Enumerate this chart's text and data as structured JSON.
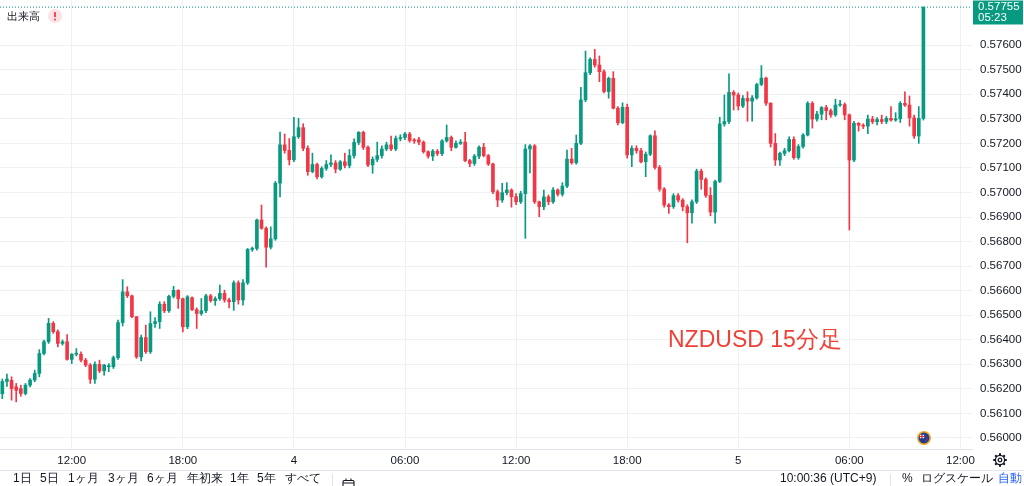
{
  "chart_data": {
    "type": "candlestick",
    "annotations": [
      "出来高",
      "05:23",
      "NZDUSD 15分足",
      "1日",
      "5日",
      "1ヶ月",
      "3ヶ月",
      "6ヶ月",
      "年初来",
      "1年",
      "5年",
      "すべて",
      "10:00:36 (UTC+9)",
      "%",
      "ログスケール",
      "自動"
    ],
    "categories": [
      null,
      null,
      null,
      null,
      null,
      null,
      null,
      null,
      null,
      null,
      null,
      null,
      null,
      null,
      null,
      "12:00",
      null,
      null,
      null,
      null,
      null,
      null,
      null,
      null,
      null,
      null,
      null,
      null,
      null,
      null,
      null,
      null,
      null,
      null,
      null,
      null,
      null,
      null,
      null,
      "18:00",
      null,
      null,
      null,
      null,
      null,
      null,
      null,
      null,
      null,
      null,
      null,
      null,
      null,
      null,
      null,
      null,
      null,
      null,
      null,
      null,
      null,
      null,
      null,
      "4",
      null,
      null,
      null,
      null,
      null,
      null,
      null,
      null,
      null,
      null,
      null,
      null,
      null,
      null,
      null,
      null,
      null,
      null,
      null,
      null,
      null,
      null,
      null,
      "06:00",
      null,
      null,
      null,
      null,
      null,
      null,
      null,
      null,
      null,
      null,
      null,
      null,
      null,
      null,
      null,
      null,
      null,
      null,
      null,
      null,
      null,
      null,
      null,
      "12:00",
      null,
      null,
      null,
      null,
      null,
      null,
      null,
      null,
      null,
      null,
      null,
      null,
      null,
      null,
      null,
      null,
      null,
      null,
      null,
      null,
      null,
      null,
      null,
      "18:00",
      null,
      null,
      null,
      null,
      null,
      null,
      null,
      null,
      null,
      null,
      null,
      null,
      null,
      null,
      null,
      null,
      null,
      null,
      null,
      null,
      null,
      null,
      null,
      "5",
      null,
      null,
      null,
      null,
      null,
      null,
      null,
      null,
      null,
      null,
      null,
      null,
      null,
      null,
      null,
      null,
      null,
      null,
      null,
      null,
      null,
      null,
      null,
      "06:00",
      null,
      null,
      null,
      null,
      null,
      null,
      null,
      null,
      null,
      null,
      null,
      null,
      null,
      null,
      null,
      null,
      null,
      null,
      null,
      null,
      null,
      null,
      null,
      "12:00",
      null,
      null
    ],
    "ohlc": [
      [
        0.5618,
        0.5624,
        0.5616,
        0.5623
      ],
      [
        0.5623,
        0.5626,
        0.5621,
        0.5624
      ],
      [
        0.56235,
        0.56249,
        0.56154,
        0.56201
      ],
      [
        0.56208,
        0.56222,
        0.56147,
        0.56194
      ],
      [
        0.56201,
        0.56215,
        0.5617,
        0.56181
      ],
      [
        0.56181,
        0.56222,
        0.56175,
        0.56215
      ],
      [
        0.56215,
        0.56242,
        0.56208,
        0.56236
      ],
      [
        0.56236,
        0.56276,
        0.56229,
        0.56263
      ],
      [
        0.56263,
        0.5636,
        0.56249,
        0.56344
      ],
      [
        0.56344,
        0.56399,
        0.56338,
        0.56392
      ],
      [
        0.56392,
        0.56487,
        0.56385,
        0.56467
      ],
      [
        0.56467,
        0.56474,
        0.56426,
        0.56433
      ],
      [
        0.56433,
        0.5644,
        0.56371,
        0.56385
      ],
      [
        0.56385,
        0.56399,
        0.56378,
        0.56392
      ],
      [
        0.56392,
        0.56421,
        0.56317,
        0.5632
      ],
      [
        0.5632,
        0.56344,
        0.56303,
        0.56341
      ],
      [
        0.56341,
        0.56364,
        0.56334,
        0.56341
      ],
      [
        0.56341,
        0.56351,
        0.5631,
        0.56317
      ],
      [
        0.56317,
        0.56324,
        0.5629,
        0.56297
      ],
      [
        0.56297,
        0.56303,
        0.56222,
        0.56239
      ],
      [
        0.56239,
        0.5631,
        0.56222,
        0.563
      ],
      [
        0.563,
        0.56317,
        0.56266,
        0.56273
      ],
      [
        0.56273,
        0.563,
        0.56256,
        0.56297
      ],
      [
        0.5629,
        0.56303,
        0.5627,
        0.5629
      ],
      [
        0.5629,
        0.56334,
        0.56283,
        0.56327
      ],
      [
        0.56327,
        0.5648,
        0.5632,
        0.5647
      ],
      [
        0.5647,
        0.56645,
        0.56456,
        0.56595
      ],
      [
        0.56595,
        0.56616,
        0.56572,
        0.56579
      ],
      [
        0.56579,
        0.56582,
        0.5649,
        0.56494
      ],
      [
        0.56494,
        0.56494,
        0.56324,
        0.5633
      ],
      [
        0.5633,
        0.56419,
        0.56314,
        0.56409
      ],
      [
        0.56409,
        0.5646,
        0.56344,
        0.56351
      ],
      [
        0.56351,
        0.56514,
        0.56344,
        0.56466
      ],
      [
        0.56466,
        0.5649,
        0.5645,
        0.56474
      ],
      [
        0.56474,
        0.56555,
        0.56446,
        0.56545
      ],
      [
        0.56545,
        0.56555,
        0.5651,
        0.56518
      ],
      [
        0.56518,
        0.56582,
        0.56511,
        0.56577
      ],
      [
        0.56577,
        0.56618,
        0.5657,
        0.56601
      ],
      [
        0.56601,
        0.56604,
        0.56528,
        0.56567
      ],
      [
        0.56567,
        0.5657,
        0.56432,
        0.56453
      ],
      [
        0.56453,
        0.5658,
        0.56445,
        0.56575
      ],
      [
        0.56571,
        0.56575,
        0.56518,
        0.56523
      ],
      [
        0.56523,
        0.5653,
        0.56446,
        0.56507
      ],
      [
        0.56507,
        0.56568,
        0.565,
        0.56518
      ],
      [
        0.56518,
        0.56585,
        0.5651,
        0.56579
      ],
      [
        0.56579,
        0.56585,
        0.56553,
        0.56559
      ],
      [
        0.56559,
        0.56575,
        0.5654,
        0.56567
      ],
      [
        0.56567,
        0.56623,
        0.5656,
        0.56589
      ],
      [
        0.56589,
        0.56602,
        0.56553,
        0.56562
      ],
      [
        0.56562,
        0.5657,
        0.5653,
        0.56555
      ],
      [
        0.56555,
        0.5664,
        0.5652,
        0.56632
      ],
      [
        0.56632,
        0.5664,
        0.56545,
        0.56562
      ],
      [
        0.56562,
        0.56645,
        0.56541,
        0.56632
      ],
      [
        0.56632,
        0.56772,
        0.56625,
        0.56768
      ],
      [
        0.56768,
        0.56778,
        0.5676,
        0.56772
      ],
      [
        0.56772,
        0.56892,
        0.56765,
        0.56888
      ],
      [
        0.56888,
        0.56949,
        0.5685,
        0.56854
      ],
      [
        0.56854,
        0.5686,
        0.56696,
        0.56777
      ],
      [
        0.56777,
        0.5686,
        0.5677,
        0.56811
      ],
      [
        0.56811,
        0.57045,
        0.56805,
        0.57038
      ],
      [
        0.57038,
        0.57246,
        0.56982,
        0.57194
      ],
      [
        0.57194,
        0.57238,
        0.5716,
        0.57171
      ],
      [
        0.57171,
        0.5722,
        0.57112,
        0.57133
      ],
      [
        0.57133,
        0.57306,
        0.57125,
        0.57227
      ],
      [
        0.57227,
        0.57302,
        0.5722,
        0.57264
      ],
      [
        0.57264,
        0.5728,
        0.5717,
        0.5718
      ],
      [
        0.5718,
        0.5719,
        0.5707,
        0.57085
      ],
      [
        0.57085,
        0.5716,
        0.5708,
        0.57114
      ],
      [
        0.57114,
        0.5712,
        0.57055,
        0.57064
      ],
      [
        0.57064,
        0.57105,
        0.57058,
        0.57098
      ],
      [
        0.57098,
        0.5713,
        0.5709,
        0.57114
      ],
      [
        0.57114,
        0.57153,
        0.57105,
        0.5712
      ],
      [
        0.5712,
        0.5713,
        0.5708,
        0.57095
      ],
      [
        0.57095,
        0.5713,
        0.5709,
        0.57125
      ],
      [
        0.57125,
        0.5716,
        0.571,
        0.5711
      ],
      [
        0.5711,
        0.57175,
        0.571,
        0.5715
      ],
      [
        0.5715,
        0.57218,
        0.5714,
        0.57204
      ],
      [
        0.57204,
        0.57248,
        0.57195,
        0.57245
      ],
      [
        0.57245,
        0.5725,
        0.57175,
        0.57184
      ],
      [
        0.57184,
        0.5719,
        0.57105,
        0.57112
      ],
      [
        0.57112,
        0.57145,
        0.57078,
        0.57135
      ],
      [
        0.57135,
        0.57205,
        0.57125,
        0.5715
      ],
      [
        0.5715,
        0.5719,
        0.5714,
        0.57177
      ],
      [
        0.57177,
        0.57205,
        0.5717,
        0.57194
      ],
      [
        0.57194,
        0.5723,
        0.5717,
        0.57177
      ],
      [
        0.57177,
        0.5723,
        0.5717,
        0.5722
      ],
      [
        0.5722,
        0.57235,
        0.5721,
        0.57224
      ],
      [
        0.57224,
        0.57245,
        0.57215,
        0.57238
      ],
      [
        0.57238,
        0.57245,
        0.57205,
        0.57212
      ],
      [
        0.57212,
        0.5722,
        0.572,
        0.5721
      ],
      [
        0.57215,
        0.57225,
        0.57195,
        0.57205
      ],
      [
        0.57205,
        0.5721,
        0.5716,
        0.57166
      ],
      [
        0.57166,
        0.5717,
        0.5714,
        0.57148
      ],
      [
        0.57148,
        0.57175,
        0.5713,
        0.57168
      ],
      [
        0.57168,
        0.57175,
        0.5715,
        0.57158
      ],
      [
        0.57158,
        0.57215,
        0.5715,
        0.5721
      ],
      [
        0.5721,
        0.57275,
        0.57205,
        0.57224
      ],
      [
        0.57224,
        0.5723,
        0.5717,
        0.57184
      ],
      [
        0.57184,
        0.5721,
        0.5718,
        0.572
      ],
      [
        0.572,
        0.57215,
        0.57195,
        0.57205
      ],
      [
        0.57205,
        0.57245,
        0.57125,
        0.5713
      ],
      [
        0.5713,
        0.57135,
        0.57105,
        0.57118
      ],
      [
        0.57118,
        0.57155,
        0.5711,
        0.57148
      ],
      [
        0.57148,
        0.5719,
        0.57138,
        0.57184
      ],
      [
        0.57184,
        0.572,
        0.57145,
        0.5715
      ],
      [
        0.5715,
        0.57155,
        0.5711,
        0.57116
      ],
      [
        0.57116,
        0.5712,
        0.56995,
        0.57003
      ],
      [
        0.57003,
        0.5701,
        0.56942,
        0.56969
      ],
      [
        0.56969,
        0.57037,
        0.5696,
        0.56999
      ],
      [
        0.56999,
        0.5704,
        0.5699,
        0.5701
      ],
      [
        0.5701,
        0.57015,
        0.5694,
        0.56983
      ],
      [
        0.56983,
        0.56995,
        0.5695,
        0.56962
      ],
      [
        0.56962,
        0.57005,
        0.56955,
        0.56995
      ],
      [
        0.56995,
        0.57195,
        0.56813,
        0.57177
      ],
      [
        0.57177,
        0.57195,
        0.5708,
        0.5719
      ],
      [
        0.5719,
        0.57195,
        0.56955,
        0.56962
      ],
      [
        0.56962,
        0.56965,
        0.56901,
        0.56942
      ],
      [
        0.56942,
        0.5701,
        0.5693,
        0.56982
      ],
      [
        0.56982,
        0.5699,
        0.5695,
        0.56962
      ],
      [
        0.56962,
        0.5702,
        0.56955,
        0.5701
      ],
      [
        0.5701,
        0.57015,
        0.56985,
        0.56993
      ],
      [
        0.56993,
        0.5704,
        0.56985,
        0.57026
      ],
      [
        0.57026,
        0.57173,
        0.5702,
        0.57136
      ],
      [
        0.57136,
        0.5718,
        0.57115,
        0.57121
      ],
      [
        0.57121,
        0.57234,
        0.57115,
        0.572
      ],
      [
        0.572,
        0.57428,
        0.57195,
        0.57377
      ],
      [
        0.57377,
        0.57576,
        0.5737,
        0.57488
      ],
      [
        0.57488,
        0.57548,
        0.5748,
        0.57542
      ],
      [
        0.57542,
        0.57583,
        0.5751,
        0.57519
      ],
      [
        0.57519,
        0.57556,
        0.57451,
        0.57492
      ],
      [
        0.57492,
        0.575,
        0.57405,
        0.57411
      ],
      [
        0.57411,
        0.5747,
        0.57384,
        0.57465
      ],
      [
        0.57465,
        0.57492,
        0.5734,
        0.57343
      ],
      [
        0.57343,
        0.5735,
        0.57275,
        0.57284
      ],
      [
        0.57284,
        0.57365,
        0.5728,
        0.57347
      ],
      [
        0.57347,
        0.5736,
        0.5714,
        0.57153
      ],
      [
        0.57153,
        0.5719,
        0.57105,
        0.5718
      ],
      [
        0.5718,
        0.5719,
        0.5716,
        0.5717
      ],
      [
        0.5717,
        0.5718,
        0.5712,
        0.57125
      ],
      [
        0.57125,
        0.57165,
        0.57064,
        0.57156
      ],
      [
        0.57156,
        0.57235,
        0.5715,
        0.57231
      ],
      [
        0.57231,
        0.57251,
        0.57095,
        0.57102
      ],
      [
        0.57102,
        0.5711,
        0.57005,
        0.57014
      ],
      [
        0.57014,
        0.5702,
        0.5694,
        0.56949
      ],
      [
        0.56949,
        0.56955,
        0.56915,
        0.56942
      ],
      [
        0.56942,
        0.56995,
        0.56935,
        0.56987
      ],
      [
        0.56987,
        0.56995,
        0.5696,
        0.56969
      ],
      [
        0.56969,
        0.56975,
        0.56925,
        0.56942
      ],
      [
        0.56942,
        0.5695,
        0.56795,
        0.56917
      ],
      [
        0.56917,
        0.5697,
        0.56875,
        0.56962
      ],
      [
        0.56962,
        0.57095,
        0.56955,
        0.57087
      ],
      [
        0.57087,
        0.57095,
        0.57013,
        0.57053
      ],
      [
        0.57053,
        0.5706,
        0.5698,
        0.56988
      ],
      [
        0.56988,
        0.5702,
        0.56905,
        0.5692
      ],
      [
        0.5692,
        0.5705,
        0.56875,
        0.57045
      ],
      [
        0.57045,
        0.57306,
        0.5704,
        0.57279
      ],
      [
        0.57279,
        0.57397,
        0.5727,
        0.57289
      ],
      [
        0.57289,
        0.57483,
        0.5728,
        0.57408
      ],
      [
        0.57408,
        0.57415,
        0.57336,
        0.57397
      ],
      [
        0.57397,
        0.57405,
        0.57336,
        0.57352
      ],
      [
        0.57352,
        0.57395,
        0.57345,
        0.57383
      ],
      [
        0.57383,
        0.5741,
        0.5729,
        0.57372
      ],
      [
        0.57372,
        0.57395,
        0.5729,
        0.57385
      ],
      [
        0.57385,
        0.57445,
        0.5738,
        0.5744
      ],
      [
        0.5744,
        0.57517,
        0.57435,
        0.57466
      ],
      [
        0.57466,
        0.5747,
        0.57355,
        0.57364
      ],
      [
        0.57364,
        0.57365,
        0.57185,
        0.572
      ],
      [
        0.572,
        0.5724,
        0.5711,
        0.57132
      ],
      [
        0.57132,
        0.57165,
        0.5711,
        0.57159
      ],
      [
        0.57159,
        0.5718,
        0.5715,
        0.5717
      ],
      [
        0.5717,
        0.57227,
        0.57165,
        0.57216
      ],
      [
        0.57216,
        0.57227,
        0.57135,
        0.57142
      ],
      [
        0.57142,
        0.57195,
        0.57135,
        0.57187
      ],
      [
        0.57187,
        0.5724,
        0.5718,
        0.57234
      ],
      [
        0.57234,
        0.5737,
        0.5723,
        0.57363
      ],
      [
        0.57363,
        0.5737,
        0.57262,
        0.57299
      ],
      [
        0.57299,
        0.5733,
        0.5729,
        0.57319
      ],
      [
        0.57319,
        0.5735,
        0.57296,
        0.57346
      ],
      [
        0.57346,
        0.57355,
        0.57296,
        0.57333
      ],
      [
        0.57333,
        0.5734,
        0.57306,
        0.57316
      ],
      [
        0.57316,
        0.5738,
        0.5731,
        0.57356
      ],
      [
        0.57356,
        0.57375,
        0.5735,
        0.57358
      ],
      [
        0.57358,
        0.57365,
        0.57296,
        0.57316
      ],
      [
        0.57316,
        0.5732,
        0.56847,
        0.57132
      ],
      [
        0.57132,
        0.5729,
        0.57125,
        0.57282
      ],
      [
        0.57282,
        0.57285,
        0.5725,
        0.57274
      ],
      [
        0.57274,
        0.5728,
        0.5726,
        0.5727
      ],
      [
        0.5727,
        0.57315,
        0.5724,
        0.57299
      ],
      [
        0.57299,
        0.5731,
        0.5728,
        0.57288
      ],
      [
        0.57288,
        0.57305,
        0.57275,
        0.57297
      ],
      [
        0.57297,
        0.57315,
        0.5728,
        0.57289
      ],
      [
        0.57289,
        0.5731,
        0.5728,
        0.57302
      ],
      [
        0.57302,
        0.5735,
        0.5729,
        0.57295
      ],
      [
        0.57295,
        0.57325,
        0.5729,
        0.573
      ],
      [
        0.573,
        0.5737,
        0.57285,
        0.57363
      ],
      [
        0.57363,
        0.5741,
        0.5735,
        0.57356
      ],
      [
        0.57356,
        0.57393,
        0.5727,
        0.57304
      ],
      [
        0.57304,
        0.57315,
        0.5722,
        0.5723
      ],
      [
        0.5723,
        0.5735,
        0.572,
        0.57302
      ],
      [
        0.57302,
        0.57755,
        0.57295,
        0.57755
      ],
      null,
      null,
      null,
      null,
      null,
      null,
      null,
      null,
      null,
      null
    ],
    "colors": [
      "#089981",
      "#089981",
      "#f23645",
      "#f23645",
      "#f23645",
      "#089981",
      "#089981",
      "#089981",
      "#089981",
      "#089981",
      "#089981",
      "#f23645",
      "#f23645",
      "#089981",
      "#f23645",
      "#089981",
      "#089981",
      "#f23645",
      "#f23645",
      "#f23645",
      "#089981",
      "#f23645",
      "#089981",
      "#089981",
      "#089981",
      "#089981",
      "#089981",
      "#f23645",
      "#f23645",
      "#f23645",
      "#089981",
      "#f23645",
      "#089981",
      "#089981",
      "#089981",
      "#f23645",
      "#089981",
      "#089981",
      "#f23645",
      "#f23645",
      "#089981",
      "#f23645",
      "#f23645",
      "#089981",
      "#089981",
      "#f23645",
      "#089981",
      "#089981",
      "#f23645",
      "#f23645",
      "#089981",
      "#f23645",
      "#089981",
      "#089981",
      "#089981",
      "#089981",
      "#f23645",
      "#f23645",
      "#089981",
      "#089981",
      "#089981",
      "#f23645",
      "#f23645",
      "#089981",
      "#089981",
      "#f23645",
      "#f23645",
      "#089981",
      "#f23645",
      "#089981",
      "#089981",
      "#089981",
      "#f23645",
      "#089981",
      "#f23645",
      "#089981",
      "#089981",
      "#089981",
      "#f23645",
      "#f23645",
      "#089981",
      "#089981",
      "#089981",
      "#089981",
      "#f23645",
      "#089981",
      "#089981",
      "#089981",
      "#f23645",
      "#f23645",
      "#f23645",
      "#f23645",
      "#f23645",
      "#089981",
      "#f23645",
      "#089981",
      "#089981",
      "#f23645",
      "#089981",
      "#089981",
      "#f23645",
      "#f23645",
      "#089981",
      "#089981",
      "#f23645",
      "#f23645",
      "#f23645",
      "#f23645",
      "#089981",
      "#089981",
      "#f23645",
      "#f23645",
      "#089981",
      "#089981",
      "#089981",
      "#f23645",
      "#f23645",
      "#089981",
      "#f23645",
      "#089981",
      "#f23645",
      "#089981",
      "#089981",
      "#f23645",
      "#089981",
      "#089981",
      "#089981",
      "#089981",
      "#f23645",
      "#f23645",
      "#f23645",
      "#089981",
      "#f23645",
      "#f23645",
      "#089981",
      "#f23645",
      "#089981",
      "#f23645",
      "#f23645",
      "#089981",
      "#089981",
      "#f23645",
      "#f23645",
      "#f23645",
      "#f23645",
      "#089981",
      "#f23645",
      "#f23645",
      "#f23645",
      "#089981",
      "#089981",
      "#f23645",
      "#f23645",
      "#f23645",
      "#089981",
      "#089981",
      "#089981",
      "#089981",
      "#f23645",
      "#f23645",
      "#089981",
      "#f23645",
      "#089981",
      "#089981",
      "#089981",
      "#f23645",
      "#f23645",
      "#f23645",
      "#089981",
      "#089981",
      "#089981",
      "#f23645",
      "#089981",
      "#089981",
      "#089981",
      "#f23645",
      "#089981",
      "#089981",
      "#f23645",
      "#f23645",
      "#089981",
      "#089981",
      "#f23645",
      "#f23645",
      "#089981",
      "#f23645",
      "#f23645",
      "#089981",
      "#f23645",
      "#089981",
      "#f23645",
      "#089981",
      "#f23645",
      "#089981",
      "#089981",
      "#f23645",
      "#f23645",
      "#f23645",
      "#089981",
      "#089981",
      null,
      null,
      null,
      null,
      null,
      null,
      null,
      null,
      null,
      null
    ],
    "ylim": [
      0.55955,
      0.57784
    ],
    "yticks": [
      {
        "value": 0.56,
        "label": "0.56000"
      },
      {
        "value": 0.561,
        "label": "0.56100"
      },
      {
        "value": 0.562,
        "label": "0.56200"
      },
      {
        "value": 0.563,
        "label": "0.56300"
      },
      {
        "value": 0.564,
        "label": "0.56400"
      },
      {
        "value": 0.565,
        "label": "0.56500"
      },
      {
        "value": 0.566,
        "label": "0.56600"
      },
      {
        "value": 0.567,
        "label": "0.56700"
      },
      {
        "value": 0.568,
        "label": "0.56800"
      },
      {
        "value": 0.569,
        "label": "0.56900"
      },
      {
        "value": 0.57,
        "label": "0.57000"
      },
      {
        "value": 0.571,
        "label": "0.57100"
      },
      {
        "value": 0.572,
        "label": "0.57200"
      },
      {
        "value": 0.573,
        "label": "0.57300"
      },
      {
        "value": 0.574,
        "label": "0.57400"
      },
      {
        "value": 0.575,
        "label": "0.57500"
      },
      {
        "value": 0.576,
        "label": "0.57600"
      }
    ],
    "grid": true,
    "ref_lines": [
      {
        "axis": "y",
        "value": 0.57755,
        "label": "0.57755",
        "color": "#089981",
        "line_style": "dotted"
      }
    ]
  }
}
